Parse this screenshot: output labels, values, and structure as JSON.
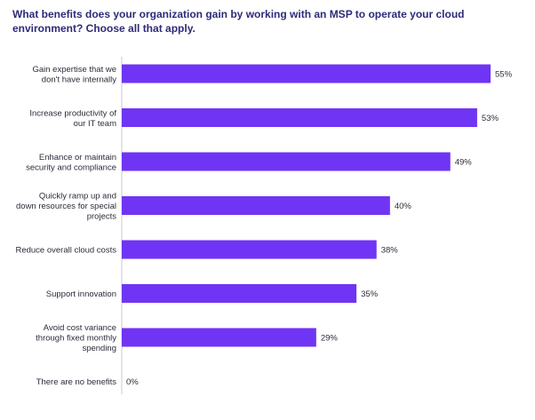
{
  "chart_data": {
    "type": "bar",
    "orientation": "horizontal",
    "title": "What benefits does your organization gain by working with an MSP to operate your cloud environment? Choose all that apply.",
    "categories": [
      [
        "Gain expertise that we",
        "don't have internally"
      ],
      [
        "Increase productivity of",
        "our IT team"
      ],
      [
        "Enhance or maintain",
        "security and compliance"
      ],
      [
        "Quickly ramp up and",
        "down resources for special",
        "projects"
      ],
      [
        "Reduce overall cloud costs"
      ],
      [
        "Support innovation"
      ],
      [
        "Avoid cost variance",
        "through fixed monthly",
        "spending"
      ],
      [
        "There are no benefits"
      ]
    ],
    "values": [
      55,
      53,
      49,
      40,
      38,
      35,
      29,
      0
    ],
    "value_labels": [
      "55%",
      "53%",
      "49%",
      "40%",
      "38%",
      "35%",
      "29%",
      "0%"
    ],
    "xlim": [
      0,
      55
    ],
    "grid": false,
    "legend": "none",
    "bar_color": "#7034f4",
    "axis_color": "#c9c9d4",
    "title_color": "#2d2a7a"
  }
}
